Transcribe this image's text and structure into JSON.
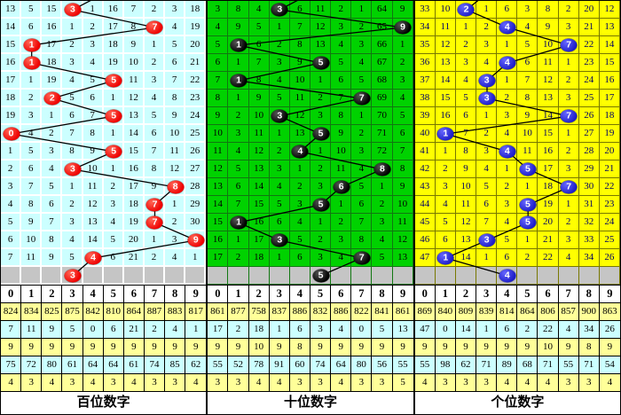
{
  "chart_data": {
    "type": "table",
    "description": "Lottery 3D digit trend chart: per-position miss counts with drawn digit balls, prediction row and statistics",
    "stats_row_colors": [
      "#FFFF99",
      "#CCFFFF",
      "#FFFF99",
      "#CCFFFF",
      "#FFFF99"
    ],
    "panels": [
      {
        "id": "hundreds",
        "footer_label": "百位数字",
        "columns": [
          "0",
          "1",
          "2",
          "3",
          "4",
          "5",
          "6",
          "7",
          "8",
          "9"
        ],
        "colors": {
          "cell_bg": "#CCFFFF",
          "grid_line": "#FFFFFF",
          "number_text": "#000000",
          "ball": "#EE0000",
          "ball_hi": "#FF6655"
        },
        "drawn_sequence": [
          3,
          7,
          1,
          1,
          5,
          2,
          5,
          0,
          5,
          3,
          8,
          7,
          7,
          9,
          4
        ],
        "pending_digit": 3,
        "incoming_line_col": 5,
        "rows": [
          {
            "cells": [
              "13",
              "5",
              "15",
              "3",
              "1",
              "16",
              "7",
              "2",
              "3",
              "18"
            ],
            "ball": 3
          },
          {
            "cells": [
              "14",
              "6",
              "16",
              "1",
              "2",
              "17",
              "8",
              "7",
              "4",
              "19"
            ],
            "ball": 7
          },
          {
            "cells": [
              "15",
              "1",
              "17",
              "2",
              "3",
              "18",
              "9",
              "1",
              "5",
              "20"
            ],
            "ball": 1
          },
          {
            "cells": [
              "16",
              "1",
              "18",
              "3",
              "4",
              "19",
              "10",
              "2",
              "6",
              "21"
            ],
            "ball": 1
          },
          {
            "cells": [
              "17",
              "1",
              "19",
              "4",
              "5",
              "5",
              "11",
              "3",
              "7",
              "22"
            ],
            "ball": 5
          },
          {
            "cells": [
              "18",
              "2",
              "2",
              "5",
              "6",
              "1",
              "12",
              "4",
              "8",
              "23"
            ],
            "ball": 2
          },
          {
            "cells": [
              "19",
              "3",
              "1",
              "6",
              "7",
              "5",
              "13",
              "5",
              "9",
              "24"
            ],
            "ball": 5
          },
          {
            "cells": [
              "0",
              "4",
              "2",
              "7",
              "8",
              "1",
              "14",
              "6",
              "10",
              "25"
            ],
            "ball": 0
          },
          {
            "cells": [
              "1",
              "5",
              "3",
              "8",
              "9",
              "5",
              "15",
              "7",
              "11",
              "26"
            ],
            "ball": 5
          },
          {
            "cells": [
              "2",
              "6",
              "4",
              "3",
              "10",
              "1",
              "16",
              "8",
              "12",
              "27"
            ],
            "ball": 3
          },
          {
            "cells": [
              "3",
              "7",
              "5",
              "1",
              "11",
              "2",
              "17",
              "9",
              "8",
              "28"
            ],
            "ball": 8
          },
          {
            "cells": [
              "4",
              "8",
              "6",
              "2",
              "12",
              "3",
              "18",
              "7",
              "1",
              "29"
            ],
            "ball": 7
          },
          {
            "cells": [
              "5",
              "9",
              "7",
              "3",
              "13",
              "4",
              "19",
              "7",
              "2",
              "30"
            ],
            "ball": 7
          },
          {
            "cells": [
              "6",
              "10",
              "8",
              "4",
              "14",
              "5",
              "20",
              "1",
              "3",
              "9"
            ],
            "ball": 9
          },
          {
            "cells": [
              "7",
              "11",
              "9",
              "5",
              "4",
              "6",
              "21",
              "2",
              "4",
              "1"
            ],
            "ball": 4
          }
        ],
        "stats_rows": [
          [
            "824",
            "834",
            "825",
            "875",
            "842",
            "810",
            "864",
            "887",
            "883",
            "817"
          ],
          [
            "7",
            "11",
            "9",
            "5",
            "0",
            "6",
            "21",
            "2",
            "4",
            "1"
          ],
          [
            "9",
            "9",
            "9",
            "9",
            "9",
            "9",
            "9",
            "9",
            "9",
            "9"
          ],
          [
            "75",
            "72",
            "80",
            "61",
            "64",
            "64",
            "61",
            "74",
            "85",
            "62"
          ],
          [
            "4",
            "3",
            "4",
            "3",
            "4",
            "3",
            "4",
            "3",
            "3",
            "4"
          ]
        ]
      },
      {
        "id": "tens",
        "footer_label": "十位数字",
        "columns": [
          "0",
          "1",
          "2",
          "3",
          "4",
          "5",
          "6",
          "7",
          "8",
          "9"
        ],
        "colors": {
          "cell_bg": "#00D200",
          "grid_line": "#117711",
          "number_text": "#000000",
          "ball": "#000000",
          "ball_hi": "#555555"
        },
        "drawn_sequence": [
          3,
          9,
          1,
          5,
          1,
          7,
          3,
          5,
          4,
          8,
          6,
          5,
          1,
          3,
          7
        ],
        "pending_digit": 5,
        "incoming_line_col": 5,
        "rows": [
          {
            "cells": [
              "3",
              "8",
              "4",
              "3",
              "6",
              "11",
              "2",
              "1",
              "64",
              "9"
            ],
            "ball": 3
          },
          {
            "cells": [
              "4",
              "9",
              "5",
              "1",
              "7",
              "12",
              "3",
              "2",
              "65",
              "9"
            ],
            "ball": 9
          },
          {
            "cells": [
              "5",
              "1",
              "6",
              "2",
              "8",
              "13",
              "4",
              "3",
              "66",
              "1"
            ],
            "ball": 1
          },
          {
            "cells": [
              "6",
              "1",
              "7",
              "3",
              "9",
              "5",
              "5",
              "4",
              "67",
              "2"
            ],
            "ball": 5
          },
          {
            "cells": [
              "7",
              "1",
              "8",
              "4",
              "10",
              "1",
              "6",
              "5",
              "68",
              "3"
            ],
            "ball": 1
          },
          {
            "cells": [
              "8",
              "1",
              "9",
              "5",
              "11",
              "2",
              "7",
              "7",
              "69",
              "4"
            ],
            "ball": 7
          },
          {
            "cells": [
              "9",
              "2",
              "10",
              "3",
              "12",
              "3",
              "8",
              "1",
              "70",
              "5"
            ],
            "ball": 3
          },
          {
            "cells": [
              "10",
              "3",
              "11",
              "1",
              "13",
              "5",
              "9",
              "2",
              "71",
              "6"
            ],
            "ball": 5
          },
          {
            "cells": [
              "11",
              "4",
              "12",
              "2",
              "4",
              "1",
              "10",
              "3",
              "72",
              "7"
            ],
            "ball": 4
          },
          {
            "cells": [
              "12",
              "5",
              "13",
              "3",
              "1",
              "2",
              "11",
              "4",
              "8",
              "8"
            ],
            "ball": 8
          },
          {
            "cells": [
              "13",
              "6",
              "14",
              "4",
              "2",
              "3",
              "6",
              "5",
              "1",
              "9"
            ],
            "ball": 6
          },
          {
            "cells": [
              "14",
              "7",
              "15",
              "5",
              "3",
              "5",
              "1",
              "6",
              "2",
              "10"
            ],
            "ball": 5
          },
          {
            "cells": [
              "15",
              "1",
              "16",
              "6",
              "4",
              "1",
              "2",
              "7",
              "3",
              "11"
            ],
            "ball": 1
          },
          {
            "cells": [
              "16",
              "1",
              "17",
              "3",
              "5",
              "2",
              "3",
              "8",
              "4",
              "12"
            ],
            "ball": 3
          },
          {
            "cells": [
              "17",
              "2",
              "18",
              "1",
              "6",
              "3",
              "4",
              "7",
              "5",
              "13"
            ],
            "ball": 7
          }
        ],
        "stats_rows": [
          [
            "861",
            "877",
            "758",
            "837",
            "886",
            "832",
            "886",
            "822",
            "841",
            "861"
          ],
          [
            "17",
            "2",
            "18",
            "1",
            "6",
            "3",
            "4",
            "0",
            "5",
            "13"
          ],
          [
            "9",
            "9",
            "10",
            "9",
            "8",
            "9",
            "9",
            "9",
            "9",
            "9"
          ],
          [
            "55",
            "52",
            "78",
            "91",
            "60",
            "74",
            "64",
            "80",
            "56",
            "55"
          ],
          [
            "3",
            "3",
            "4",
            "4",
            "3",
            "3",
            "4",
            "3",
            "3",
            "5"
          ]
        ]
      },
      {
        "id": "units",
        "footer_label": "个位数字",
        "columns": [
          "0",
          "1",
          "2",
          "3",
          "4",
          "5",
          "6",
          "7",
          "8",
          "9"
        ],
        "colors": {
          "cell_bg": "#FFFF00",
          "grid_line": "#777700",
          "number_text": "#000066",
          "ball": "#1E1EC8",
          "ball_hi": "#6666FF"
        },
        "drawn_sequence": [
          2,
          4,
          7,
          4,
          3,
          3,
          7,
          1,
          4,
          5,
          7,
          5,
          5,
          3,
          1
        ],
        "pending_digit": 4,
        "incoming_line_col": 3.3,
        "rows": [
          {
            "cells": [
              "33",
              "10",
              "2",
              "1",
              "6",
              "3",
              "8",
              "2",
              "20",
              "12"
            ],
            "ball": 2
          },
          {
            "cells": [
              "34",
              "11",
              "1",
              "2",
              "4",
              "4",
              "9",
              "3",
              "21",
              "13"
            ],
            "ball": 4
          },
          {
            "cells": [
              "35",
              "12",
              "2",
              "3",
              "1",
              "5",
              "10",
              "7",
              "22",
              "14"
            ],
            "ball": 7
          },
          {
            "cells": [
              "36",
              "13",
              "3",
              "4",
              "4",
              "6",
              "11",
              "1",
              "23",
              "15"
            ],
            "ball": 4
          },
          {
            "cells": [
              "37",
              "14",
              "4",
              "3",
              "1",
              "7",
              "12",
              "2",
              "24",
              "16"
            ],
            "ball": 3
          },
          {
            "cells": [
              "38",
              "15",
              "5",
              "3",
              "2",
              "8",
              "13",
              "3",
              "25",
              "17"
            ],
            "ball": 3
          },
          {
            "cells": [
              "39",
              "16",
              "6",
              "1",
              "3",
              "9",
              "14",
              "7",
              "26",
              "18"
            ],
            "ball": 7
          },
          {
            "cells": [
              "40",
              "1",
              "7",
              "2",
              "4",
              "10",
              "15",
              "1",
              "27",
              "19"
            ],
            "ball": 1
          },
          {
            "cells": [
              "41",
              "1",
              "8",
              "3",
              "4",
              "11",
              "16",
              "2",
              "28",
              "20"
            ],
            "ball": 4
          },
          {
            "cells": [
              "42",
              "2",
              "9",
              "4",
              "1",
              "5",
              "17",
              "3",
              "29",
              "21"
            ],
            "ball": 5
          },
          {
            "cells": [
              "43",
              "3",
              "10",
              "5",
              "2",
              "1",
              "18",
              "7",
              "30",
              "22"
            ],
            "ball": 7
          },
          {
            "cells": [
              "44",
              "4",
              "11",
              "6",
              "3",
              "5",
              "19",
              "1",
              "31",
              "23"
            ],
            "ball": 5
          },
          {
            "cells": [
              "45",
              "5",
              "12",
              "7",
              "4",
              "5",
              "20",
              "2",
              "32",
              "24"
            ],
            "ball": 5
          },
          {
            "cells": [
              "46",
              "6",
              "13",
              "3",
              "5",
              "1",
              "21",
              "3",
              "33",
              "25"
            ],
            "ball": 3
          },
          {
            "cells": [
              "47",
              "1",
              "14",
              "1",
              "6",
              "2",
              "22",
              "4",
              "34",
              "26"
            ],
            "ball": 1
          }
        ],
        "stats_rows": [
          [
            "869",
            "840",
            "809",
            "839",
            "814",
            "864",
            "806",
            "857",
            "900",
            "863"
          ],
          [
            "47",
            "0",
            "14",
            "1",
            "6",
            "2",
            "22",
            "4",
            "34",
            "26"
          ],
          [
            "9",
            "9",
            "9",
            "9",
            "9",
            "9",
            "10",
            "9",
            "8",
            "9"
          ],
          [
            "55",
            "98",
            "62",
            "71",
            "89",
            "68",
            "71",
            "55",
            "71",
            "54"
          ],
          [
            "4",
            "3",
            "3",
            "3",
            "4",
            "4",
            "4",
            "3",
            "3",
            "4"
          ]
        ]
      }
    ]
  }
}
